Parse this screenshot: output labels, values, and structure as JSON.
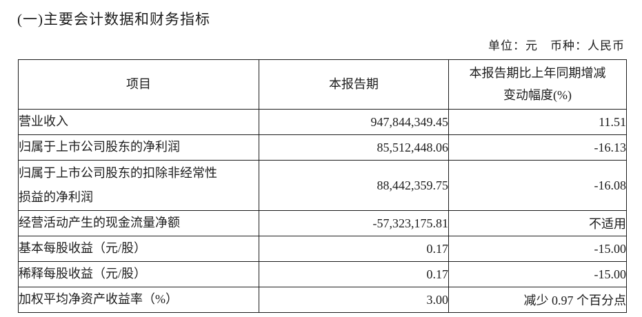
{
  "page": {
    "section_title": "(一)主要会计数据和财务指标",
    "unit_note": "单位：元　币种：人民币"
  },
  "table": {
    "headers": {
      "item": "项目",
      "current_period": "本报告期",
      "change_line1": "本报告期比上年同期增减",
      "change_line2": "变动幅度(%)"
    },
    "rows": [
      {
        "label": "营业收入",
        "current": "947,844,349.45",
        "change": "11.51"
      },
      {
        "label": "归属于上市公司股东的净利润",
        "current": "85,512,448.06",
        "change": "-16.13"
      },
      {
        "label": "归属于上市公司股东的扣除非经常性损益的净利润",
        "current": "88,442,359.75",
        "change": "-16.08"
      },
      {
        "label": "经营活动产生的现金流量净额",
        "current": "-57,323,175.81",
        "change": "不适用"
      },
      {
        "label": "基本每股收益（元/股）",
        "current": "0.17",
        "change": "-15.00"
      },
      {
        "label": "稀释每股收益（元/股）",
        "current": "0.17",
        "change": "-15.00"
      },
      {
        "label": "加权平均净资产收益率（%）",
        "current": "3.00",
        "change": "减少 0.97 个百分点"
      }
    ]
  }
}
